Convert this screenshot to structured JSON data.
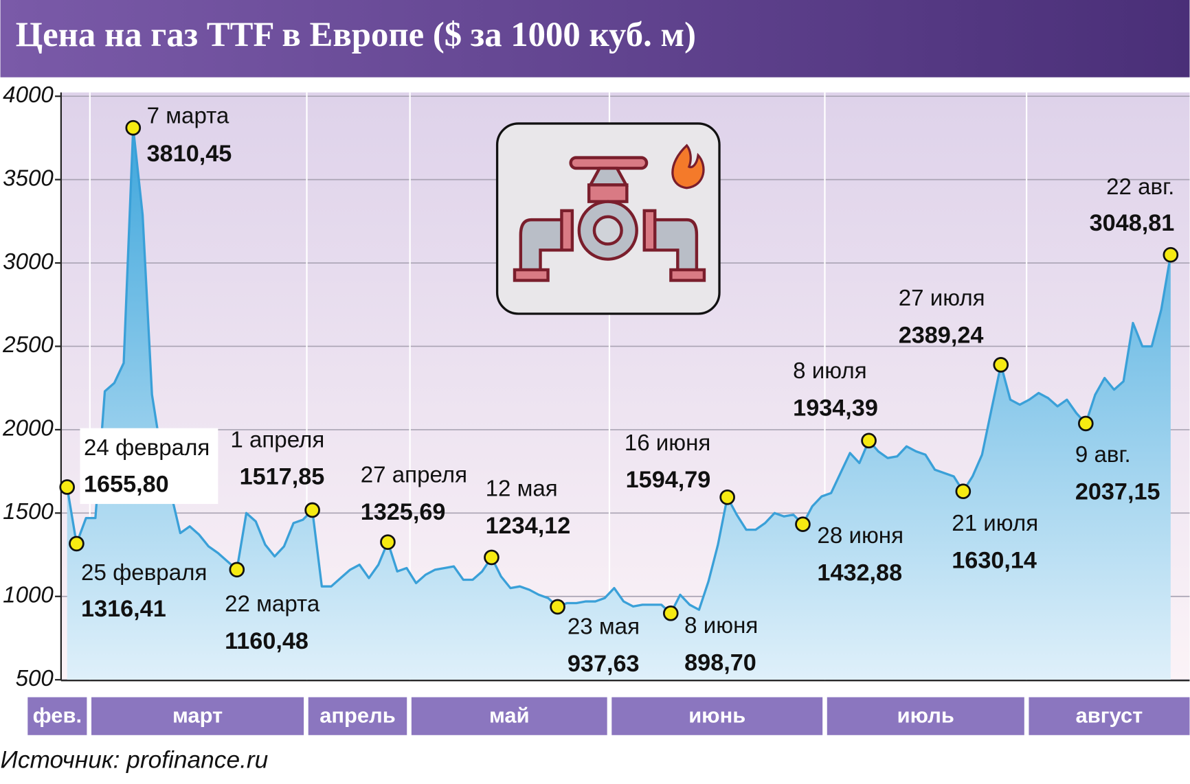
{
  "chart_data": {
    "type": "line",
    "title": "Цена на газ TTF в Европе ($ за 1000 куб. м)",
    "source": "Источник: profinance.ru",
    "color": "#3aa0d8",
    "highlight_color": "#8b1538",
    "ylim": [
      500,
      4000
    ],
    "yticks": [
      500,
      1000,
      1500,
      2000,
      2500,
      3000,
      3500,
      4000
    ],
    "grid": true,
    "months": [
      "фев.",
      "март",
      "апрель",
      "май",
      "июнь",
      "июль",
      "август"
    ],
    "categories": [
      "24 февраля",
      "25 февраля",
      null,
      null,
      null,
      null,
      null,
      "7 марта",
      null,
      null,
      null,
      null,
      null,
      null,
      null,
      null,
      null,
      null,
      "22 марта",
      null,
      null,
      null,
      null,
      null,
      null,
      null,
      "1 апреля",
      null,
      null,
      null,
      null,
      null,
      null,
      null,
      "27 апреля",
      null,
      null,
      null,
      null,
      null,
      null,
      null,
      null,
      null,
      null,
      "12 мая",
      null,
      null,
      null,
      null,
      null,
      null,
      "23 мая",
      null,
      null,
      null,
      null,
      null,
      null,
      null,
      null,
      null,
      null,
      null,
      "8 июня",
      null,
      null,
      null,
      null,
      null,
      "16 июня",
      null,
      null,
      null,
      null,
      null,
      null,
      null,
      "28 июня",
      null,
      null,
      null,
      null,
      null,
      null,
      "8 июля",
      null,
      null,
      null,
      null,
      null,
      null,
      null,
      null,
      null,
      "21 июля",
      null,
      null,
      null,
      "27 июля",
      null,
      null,
      null,
      null,
      null,
      null,
      null,
      null,
      "9 авг.",
      null,
      null,
      null,
      null,
      null,
      null,
      null,
      null,
      "22 авг."
    ],
    "values": [
      1655.8,
      1316.41,
      1470,
      1470,
      2230,
      2280,
      2400,
      3810.45,
      3290,
      2210,
      1850,
      1620,
      1380,
      1420,
      1370,
      1300,
      1260,
      1210,
      1160.48,
      1500,
      1450,
      1310,
      1240,
      1300,
      1440,
      1460,
      1517.85,
      1060,
      1060,
      1110,
      1160,
      1190,
      1110,
      1190,
      1325.69,
      1150,
      1170,
      1080,
      1130,
      1160,
      1170,
      1180,
      1100,
      1100,
      1150,
      1234.12,
      1120,
      1050,
      1060,
      1040,
      1010,
      990,
      937.63,
      960,
      960,
      970,
      970,
      990,
      1050,
      970,
      940,
      950,
      950,
      950,
      898.7,
      1010,
      950,
      920,
      1090,
      1310,
      1594.79,
      1490,
      1400,
      1400,
      1440,
      1500,
      1480,
      1490,
      1432.88,
      1540,
      1600,
      1620,
      1740,
      1860,
      1800,
      1934.39,
      1870,
      1830,
      1840,
      1900,
      1870,
      1850,
      1760,
      1740,
      1720,
      1630.14,
      1720,
      1850,
      2120,
      2389.24,
      2180,
      2150,
      2180,
      2220,
      2190,
      2140,
      2180,
      2100,
      2037.15,
      2210,
      2310,
      2240,
      2290,
      2640,
      2500,
      2500,
      2720,
      3048.81
    ],
    "value_labels": [
      "1655,80",
      "1316,41",
      null,
      null,
      null,
      null,
      null,
      "3810,45",
      null,
      null,
      null,
      null,
      null,
      null,
      null,
      null,
      null,
      null,
      "1160,48",
      null,
      null,
      null,
      null,
      null,
      null,
      null,
      "1517,85",
      null,
      null,
      null,
      null,
      null,
      null,
      null,
      "1325,69",
      null,
      null,
      null,
      null,
      null,
      null,
      null,
      null,
      null,
      null,
      "1234,12",
      null,
      null,
      null,
      null,
      null,
      null,
      "937,63",
      null,
      null,
      null,
      null,
      null,
      null,
      null,
      null,
      null,
      null,
      null,
      "898,70",
      null,
      null,
      null,
      null,
      null,
      "1594,79",
      null,
      null,
      null,
      null,
      null,
      null,
      null,
      "1432,88",
      null,
      null,
      null,
      null,
      null,
      null,
      "1934,39",
      null,
      null,
      null,
      null,
      null,
      null,
      null,
      null,
      null,
      "1630,14",
      null,
      null,
      null,
      "2389,24",
      null,
      null,
      null,
      null,
      null,
      null,
      null,
      null,
      "2037,15",
      null,
      null,
      null,
      null,
      null,
      null,
      null,
      null,
      "3048,81"
    ]
  }
}
